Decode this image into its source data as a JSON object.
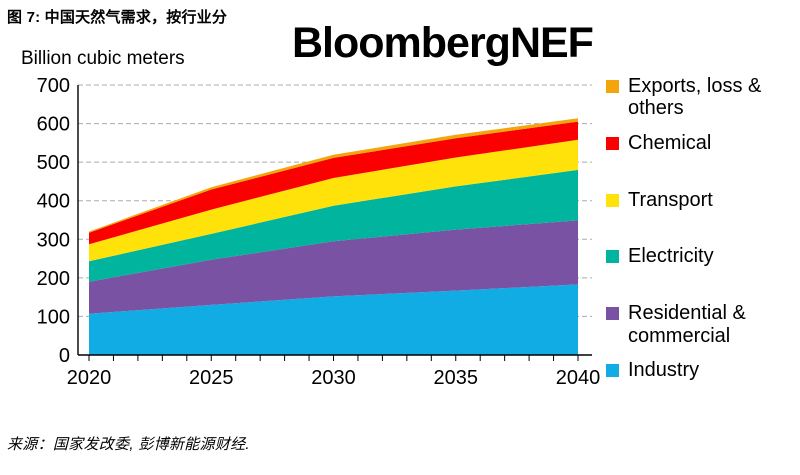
{
  "figure": {
    "title": "图 7: 中国天然气需求，按行业分",
    "watermark": "BloombergNEF",
    "source": "来源：国家发改委, 彭博新能源财经."
  },
  "chart_data": {
    "type": "area",
    "stacked": true,
    "unit_label": "Billion cubic meters",
    "x": [
      2020,
      2025,
      2030,
      2035,
      2040
    ],
    "x_ticks_labeled": [
      "2020",
      "2025",
      "2030",
      "2035",
      "2040"
    ],
    "x_minor_tick_every_years": 1,
    "xlim": [
      2020,
      2040
    ],
    "ylim": [
      0,
      700
    ],
    "y_tick_interval": 100,
    "grid": "horizontal-dashed",
    "legend_position": "right",
    "series": [
      {
        "name": "Industry",
        "color": "#12ACE5",
        "values": [
          107,
          130,
          152,
          167,
          183
        ]
      },
      {
        "name": "Residential & commercial",
        "color": "#7A52A3",
        "values": [
          83,
          117,
          143,
          158,
          166
        ]
      },
      {
        "name": "Electricity",
        "color": "#00B49D",
        "values": [
          53,
          67,
          92,
          112,
          131
        ]
      },
      {
        "name": "Transport",
        "color": "#FFE20A",
        "values": [
          44,
          63,
          72,
          75,
          78
        ]
      },
      {
        "name": "Chemical",
        "color": "#FB0000",
        "values": [
          30,
          52,
          52,
          50,
          47
        ]
      },
      {
        "name": "Exports, loss & others",
        "color": "#F2A60C",
        "values": [
          3,
          6,
          8,
          9,
          9
        ]
      }
    ],
    "totals_by_x": [
      320,
      435,
      519,
      571,
      614
    ],
    "legend_order_top_to_bottom": [
      "Exports, loss & others",
      "Chemical",
      "Transport",
      "Electricity",
      "Residential & commercial",
      "Industry"
    ]
  },
  "colors": {
    "gridline": "#ABABAB",
    "axis": "#000000",
    "text": "#000000"
  }
}
